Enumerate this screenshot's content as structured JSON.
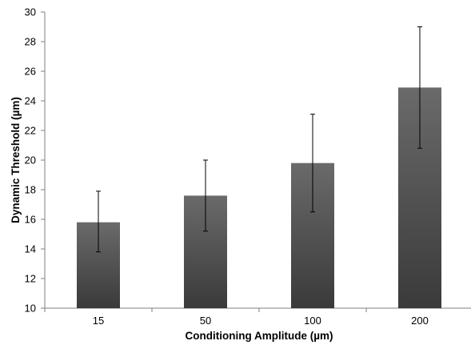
{
  "chart_data": {
    "type": "bar",
    "title": "",
    "xlabel": "Conditioning Amplitude (µm)",
    "ylabel": "Dynamic Threshold (µm)",
    "categories": [
      "15",
      "50",
      "100",
      "200"
    ],
    "values": [
      15.8,
      17.6,
      19.8,
      24.9
    ],
    "error_low": [
      13.8,
      15.2,
      16.5,
      20.8
    ],
    "error_high": [
      17.9,
      20.0,
      23.1,
      29.0
    ],
    "ylim": [
      10,
      30
    ],
    "yticks": [
      "10",
      "12",
      "14",
      "16",
      "18",
      "20",
      "22",
      "24",
      "26",
      "28",
      "30"
    ],
    "grid": false,
    "legend": "none",
    "bar_color_top": "#6a6a6a",
    "bar_color_bottom": "#3a3a3a"
  }
}
